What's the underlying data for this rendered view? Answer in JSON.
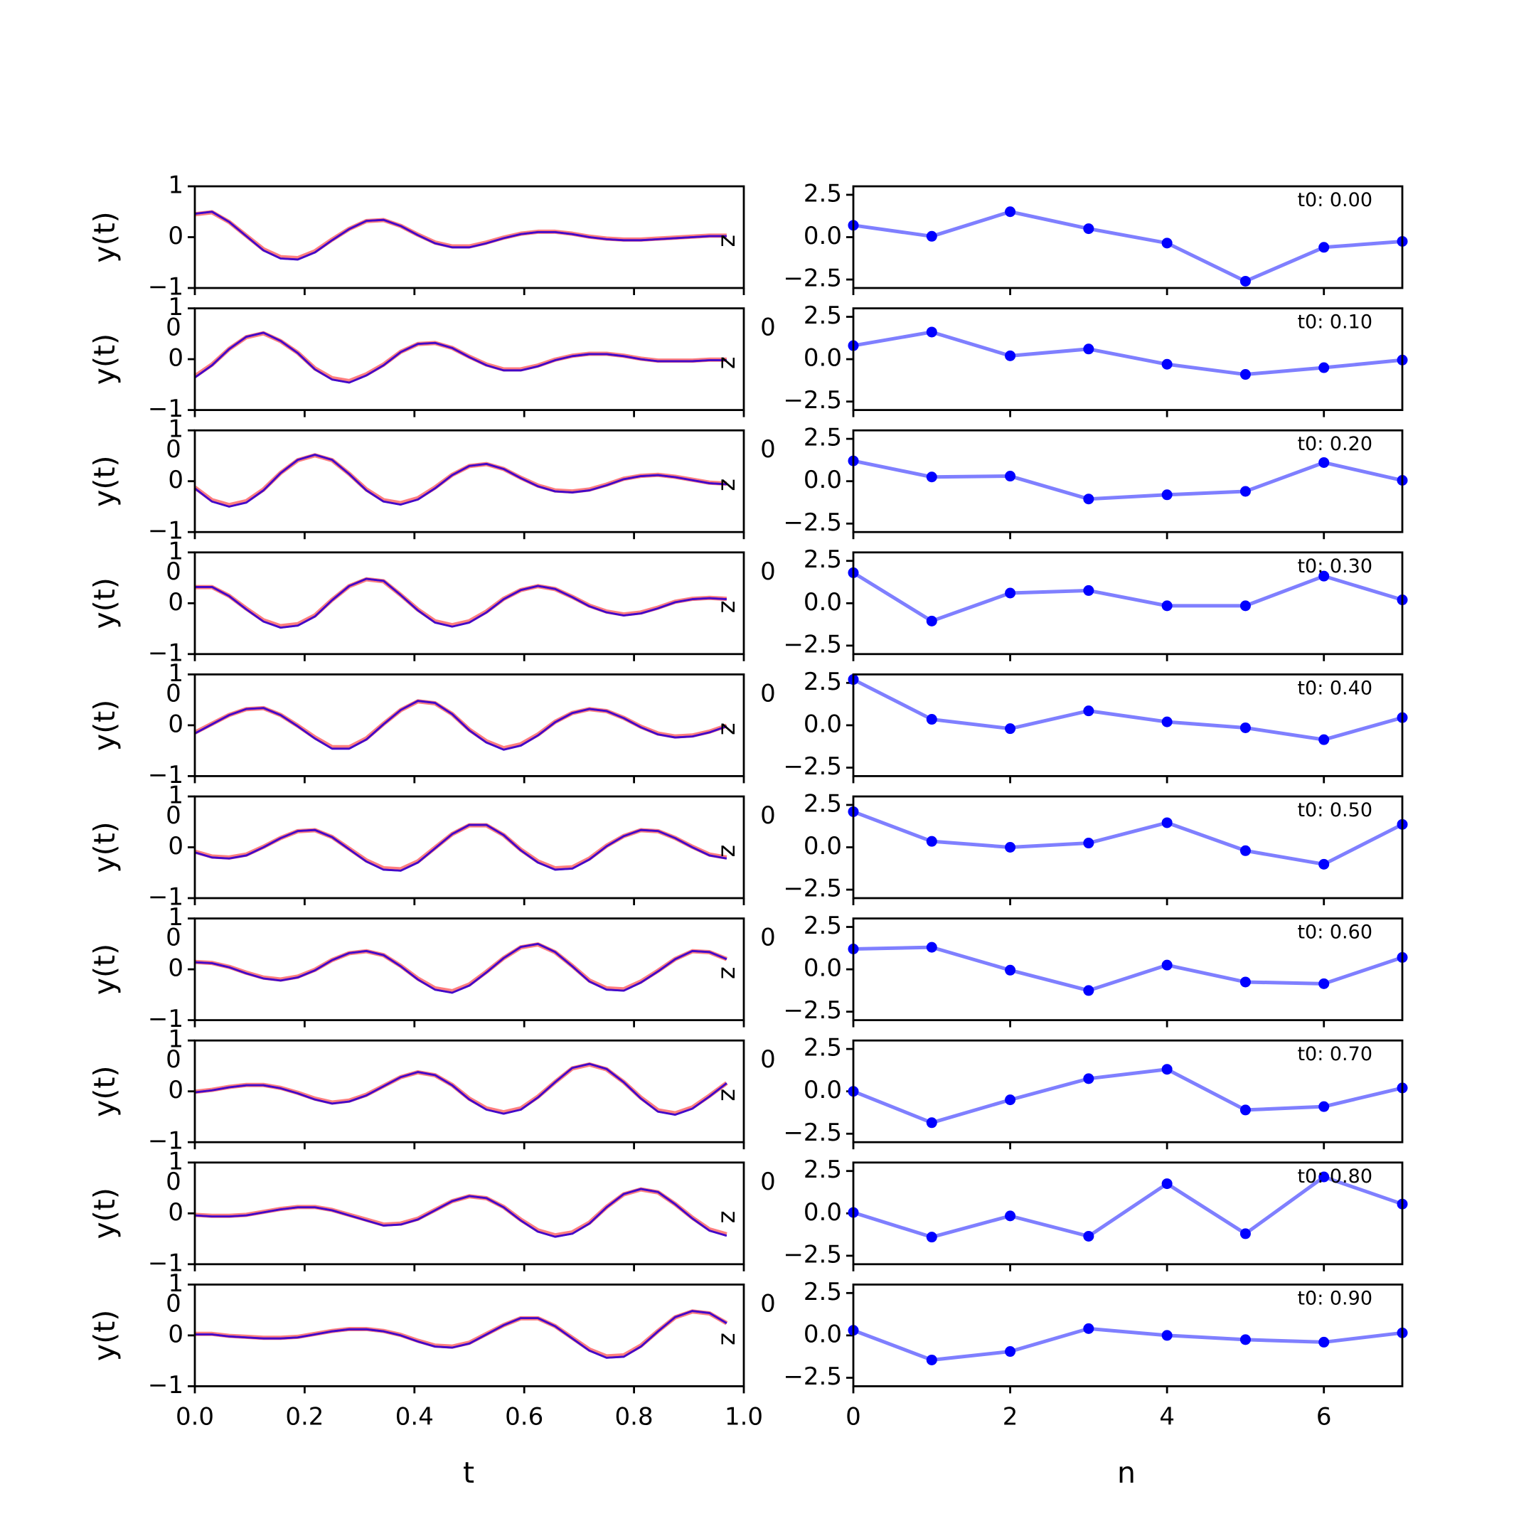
{
  "chart_data": [
    {
      "type": "line",
      "panel": "left",
      "xlabel": "t",
      "ylabel": "y(t)",
      "xlim": [
        0,
        1
      ],
      "ylim": [
        -1,
        1
      ],
      "xticks": [
        0,
        0.2,
        0.4,
        0.6,
        0.8,
        1.0
      ],
      "xtick_labels": [
        "0.0",
        "0.2",
        "0.4",
        "0.6",
        "0.8",
        "1.0"
      ],
      "yticks": [
        -1,
        0,
        1
      ],
      "ytick_labels": [
        "−1",
        "0",
        "1"
      ],
      "overlap_tick_label": "0",
      "corner_label": "z",
      "series_colors": {
        "reference": "#ff7f7f",
        "prediction": "#0000ff",
        "blend": "#7a0f9a"
      },
      "grid": false,
      "note": "10 stacked subplots; each shows a red reference and blue prediction trace nearly coincident",
      "subplots": [
        {
          "values": [
            0.46,
            0.5,
            0.3,
            0.02,
            -0.26,
            -0.42,
            -0.44,
            -0.3,
            -0.06,
            0.16,
            0.32,
            0.34,
            0.22,
            0.04,
            -0.12,
            -0.2,
            -0.2,
            -0.12,
            -0.02,
            0.06,
            0.1,
            0.1,
            0.06,
            0.0,
            -0.04,
            -0.06,
            -0.06,
            -0.04,
            -0.02,
            0.0,
            0.02,
            0.02
          ]
        },
        {
          "values": [
            -0.36,
            -0.12,
            0.2,
            0.44,
            0.52,
            0.36,
            0.12,
            -0.2,
            -0.4,
            -0.46,
            -0.32,
            -0.12,
            0.14,
            0.3,
            0.32,
            0.22,
            0.04,
            -0.12,
            -0.22,
            -0.22,
            -0.14,
            -0.02,
            0.06,
            0.1,
            0.1,
            0.06,
            0.0,
            -0.04,
            -0.04,
            -0.04,
            -0.02,
            -0.02
          ]
        },
        {
          "values": [
            -0.14,
            -0.4,
            -0.5,
            -0.42,
            -0.18,
            0.16,
            0.42,
            0.52,
            0.42,
            0.14,
            -0.18,
            -0.4,
            -0.46,
            -0.36,
            -0.14,
            0.12,
            0.3,
            0.34,
            0.24,
            0.06,
            -0.1,
            -0.2,
            -0.22,
            -0.18,
            -0.08,
            0.04,
            0.1,
            0.12,
            0.08,
            0.02,
            -0.04,
            -0.06
          ]
        },
        {
          "values": [
            0.32,
            0.32,
            0.14,
            -0.12,
            -0.36,
            -0.48,
            -0.44,
            -0.26,
            0.06,
            0.34,
            0.48,
            0.44,
            0.16,
            -0.14,
            -0.38,
            -0.46,
            -0.38,
            -0.18,
            0.08,
            0.26,
            0.34,
            0.28,
            0.12,
            -0.06,
            -0.18,
            -0.24,
            -0.2,
            -0.1,
            0.02,
            0.08,
            0.1,
            0.08
          ]
        },
        {
          "values": [
            -0.16,
            0.02,
            0.2,
            0.32,
            0.34,
            0.2,
            -0.02,
            -0.26,
            -0.46,
            -0.46,
            -0.28,
            0.02,
            0.3,
            0.48,
            0.44,
            0.22,
            -0.1,
            -0.34,
            -0.48,
            -0.4,
            -0.2,
            0.06,
            0.24,
            0.32,
            0.28,
            0.14,
            -0.04,
            -0.18,
            -0.24,
            -0.22,
            -0.14,
            -0.02
          ]
        },
        {
          "values": [
            -0.1,
            -0.2,
            -0.22,
            -0.16,
            0.0,
            0.18,
            0.32,
            0.34,
            0.2,
            -0.04,
            -0.28,
            -0.44,
            -0.46,
            -0.3,
            -0.02,
            0.26,
            0.44,
            0.44,
            0.24,
            -0.06,
            -0.3,
            -0.44,
            -0.42,
            -0.24,
            0.02,
            0.22,
            0.34,
            0.32,
            0.18,
            0.0,
            -0.16,
            -0.22
          ]
        },
        {
          "values": [
            0.14,
            0.12,
            0.04,
            -0.08,
            -0.18,
            -0.22,
            -0.16,
            -0.02,
            0.18,
            0.32,
            0.36,
            0.28,
            0.06,
            -0.2,
            -0.4,
            -0.46,
            -0.32,
            -0.06,
            0.22,
            0.44,
            0.5,
            0.34,
            0.06,
            -0.24,
            -0.4,
            -0.42,
            -0.26,
            -0.04,
            0.2,
            0.36,
            0.34,
            0.2
          ]
        },
        {
          "values": [
            -0.02,
            0.02,
            0.08,
            0.12,
            0.12,
            0.06,
            -0.04,
            -0.16,
            -0.24,
            -0.2,
            -0.08,
            0.1,
            0.28,
            0.38,
            0.32,
            0.12,
            -0.16,
            -0.36,
            -0.44,
            -0.36,
            -0.12,
            0.18,
            0.46,
            0.54,
            0.44,
            0.18,
            -0.14,
            -0.4,
            -0.46,
            -0.34,
            -0.1,
            0.16
          ]
        },
        {
          "values": [
            -0.04,
            -0.06,
            -0.06,
            -0.04,
            0.02,
            0.08,
            0.12,
            0.12,
            0.06,
            -0.04,
            -0.14,
            -0.24,
            -0.22,
            -0.12,
            0.06,
            0.24,
            0.34,
            0.3,
            0.12,
            -0.14,
            -0.36,
            -0.46,
            -0.4,
            -0.2,
            0.12,
            0.38,
            0.48,
            0.42,
            0.18,
            -0.1,
            -0.34,
            -0.44
          ]
        },
        {
          "values": [
            0.02,
            0.02,
            -0.02,
            -0.04,
            -0.06,
            -0.06,
            -0.04,
            0.02,
            0.08,
            0.12,
            0.12,
            0.08,
            0.0,
            -0.12,
            -0.22,
            -0.24,
            -0.16,
            0.02,
            0.2,
            0.34,
            0.34,
            0.18,
            -0.06,
            -0.3,
            -0.44,
            -0.42,
            -0.22,
            0.08,
            0.36,
            0.48,
            0.44,
            0.24
          ]
        }
      ]
    },
    {
      "type": "line",
      "panel": "right",
      "xlabel": "n",
      "xlim": [
        0,
        7
      ],
      "ylim": [
        -3,
        3
      ],
      "xticks": [
        0,
        2,
        4,
        6
      ],
      "xtick_labels": [
        "0",
        "2",
        "4",
        "6"
      ],
      "yticks": [
        -2.5,
        0,
        2.5
      ],
      "ytick_labels": [
        "−2.5",
        "0.0",
        "2.5"
      ],
      "overlap_tick_label": "0",
      "line_color": "#7f7fff",
      "marker_color": "#0000ff",
      "grid": false,
      "subplots": [
        {
          "t0_label": "t0: 0.00",
          "x": [
            0,
            1,
            2,
            3,
            4,
            5,
            6,
            7
          ],
          "values": [
            0.7,
            0.05,
            1.5,
            0.5,
            -0.35,
            -2.6,
            -0.6,
            -0.25
          ]
        },
        {
          "t0_label": "t0: 0.10",
          "x": [
            0,
            1,
            2,
            3,
            4,
            5,
            6,
            7
          ],
          "values": [
            0.8,
            1.6,
            0.2,
            0.6,
            -0.3,
            -0.9,
            -0.5,
            -0.05
          ]
        },
        {
          "t0_label": "t0: 0.20",
          "x": [
            0,
            1,
            2,
            3,
            4,
            5,
            6,
            7
          ],
          "values": [
            1.2,
            0.25,
            0.3,
            -1.05,
            -0.8,
            -0.6,
            1.1,
            0.05
          ]
        },
        {
          "t0_label": "t0: 0.30",
          "x": [
            0,
            1,
            2,
            3,
            4,
            5,
            6,
            7
          ],
          "values": [
            1.8,
            -1.05,
            0.6,
            0.75,
            -0.15,
            -0.15,
            1.6,
            0.2
          ]
        },
        {
          "t0_label": "t0: 0.40",
          "x": [
            0,
            1,
            2,
            3,
            4,
            5,
            6,
            7
          ],
          "values": [
            2.7,
            0.35,
            -0.2,
            0.85,
            0.2,
            -0.15,
            -0.85,
            0.45
          ]
        },
        {
          "t0_label": "t0: 0.50",
          "x": [
            0,
            1,
            2,
            3,
            4,
            5,
            6,
            7
          ],
          "values": [
            2.1,
            0.35,
            0.0,
            0.25,
            1.45,
            -0.2,
            -1.0,
            1.35
          ]
        },
        {
          "t0_label": "t0: 0.60",
          "x": [
            0,
            1,
            2,
            3,
            4,
            5,
            6,
            7
          ],
          "values": [
            1.2,
            1.3,
            -0.05,
            -1.25,
            0.25,
            -0.75,
            -0.85,
            0.7
          ]
        },
        {
          "t0_label": "t0: 0.70",
          "x": [
            0,
            1,
            2,
            3,
            4,
            5,
            6,
            7
          ],
          "values": [
            0.0,
            -1.85,
            -0.5,
            0.75,
            1.3,
            -1.1,
            -0.9,
            0.2
          ]
        },
        {
          "t0_label": "t0: 0.80",
          "x": [
            0,
            1,
            2,
            3,
            4,
            5,
            6,
            7
          ],
          "values": [
            0.05,
            -1.4,
            -0.15,
            -1.35,
            1.75,
            -1.2,
            2.15,
            0.55
          ]
        },
        {
          "t0_label": "t0: 0.90",
          "x": [
            0,
            1,
            2,
            3,
            4,
            5,
            6,
            7
          ],
          "values": [
            0.3,
            -1.45,
            -0.95,
            0.4,
            0.0,
            -0.25,
            -0.4,
            0.15
          ]
        }
      ]
    }
  ]
}
